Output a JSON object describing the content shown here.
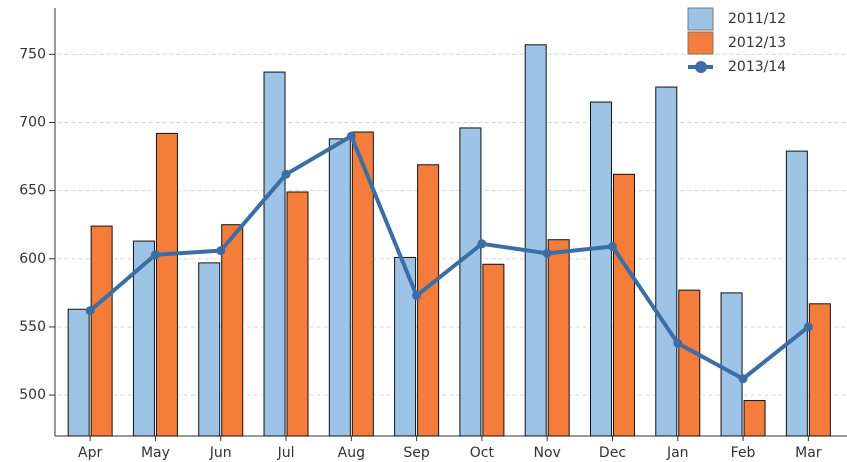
{
  "chart_data": {
    "type": "bar_line",
    "categories": [
      "Apr",
      "May",
      "Jun",
      "Jul",
      "Aug",
      "Sep",
      "Oct",
      "Nov",
      "Dec",
      "Jan",
      "Feb",
      "Mar"
    ],
    "series": [
      {
        "name": "2011/12",
        "type": "bar",
        "color": "#9dc3e6",
        "values": [
          563,
          613,
          597,
          737,
          688,
          601,
          696,
          757,
          715,
          726,
          575,
          679
        ]
      },
      {
        "name": "2012/13",
        "type": "bar",
        "color": "#f47d3c",
        "values": [
          624,
          692,
          625,
          649,
          693,
          669,
          596,
          614,
          662,
          577,
          496,
          567
        ]
      },
      {
        "name": "2013/14",
        "type": "line",
        "color": "#3a6ea5",
        "values": [
          562,
          603,
          606,
          662,
          690,
          573,
          611,
          604,
          609,
          538,
          512,
          550
        ]
      }
    ],
    "ylim": [
      470,
      784
    ],
    "yticks": [
      500,
      550,
      600,
      650,
      700,
      750
    ],
    "grid": true,
    "legend": "top-right"
  }
}
